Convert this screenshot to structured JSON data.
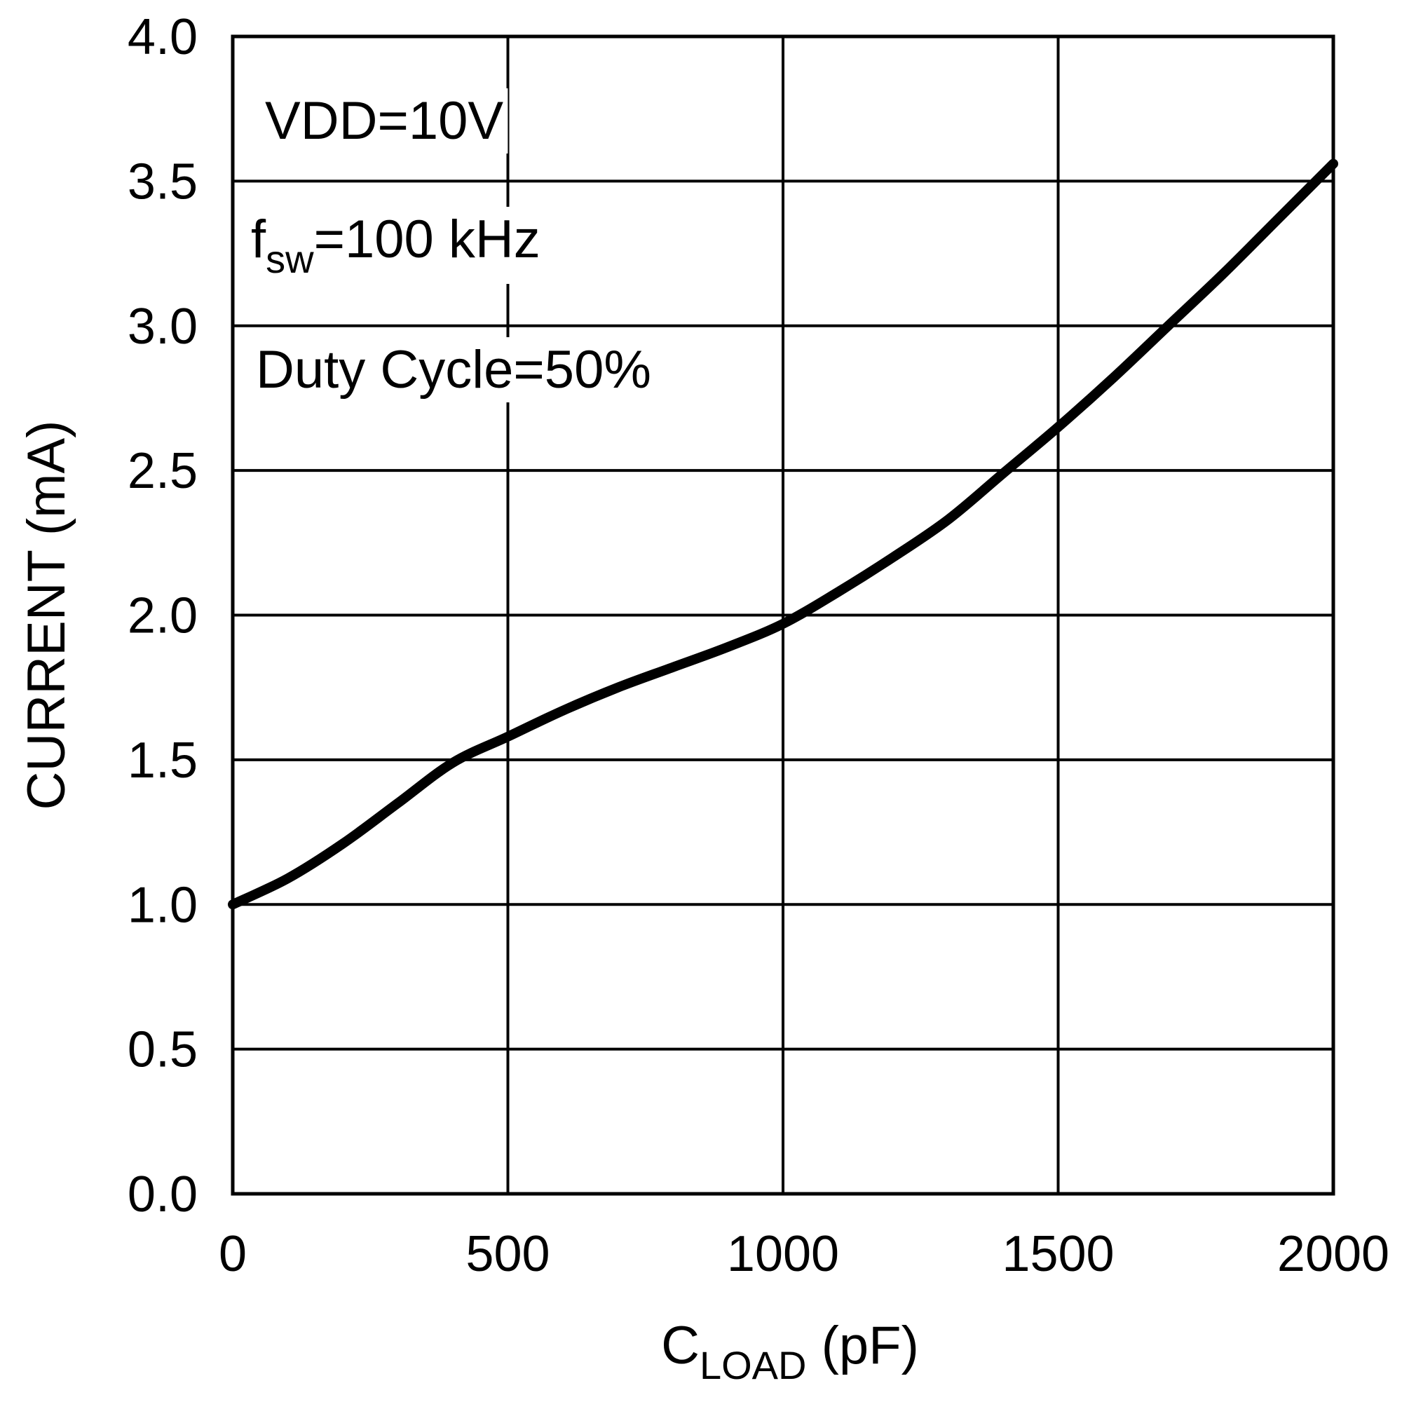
{
  "chart_data": {
    "type": "line",
    "title": "",
    "xlabel": {
      "main": "C",
      "sub": "LOAD",
      "unit": " (pF)"
    },
    "ylabel": "CURRENT (mA)",
    "xlim": [
      0,
      2000
    ],
    "ylim": [
      0,
      4.0
    ],
    "x_ticks": [
      0,
      500,
      1000,
      1500,
      2000
    ],
    "y_ticks": [
      0.0,
      0.5,
      1.0,
      1.5,
      2.0,
      2.5,
      3.0,
      3.5,
      4.0
    ],
    "x_tick_labels": [
      "0",
      "500",
      "1000",
      "1500",
      "2000"
    ],
    "y_tick_labels": [
      "0.0",
      "0.5",
      "1.0",
      "1.5",
      "2.0",
      "2.5",
      "3.0",
      "3.5",
      "4.0"
    ],
    "grid": true,
    "annotations": [
      {
        "main": "VDD=10V"
      },
      {
        "main": "f",
        "sub": "sw",
        "rest": "=100 kHz"
      },
      {
        "main": "Duty Cycle=50%"
      }
    ],
    "series": [
      {
        "name": "Current",
        "x": [
          0,
          100,
          200,
          300,
          400,
          500,
          600,
          700,
          800,
          900,
          1000,
          1100,
          1200,
          1300,
          1400,
          1500,
          1600,
          1700,
          1800,
          1900,
          2000
        ],
        "y": [
          1.0,
          1.09,
          1.21,
          1.35,
          1.49,
          1.58,
          1.67,
          1.75,
          1.82,
          1.89,
          1.97,
          2.08,
          2.2,
          2.33,
          2.49,
          2.65,
          2.82,
          3.0,
          3.18,
          3.37,
          3.56
        ]
      }
    ]
  },
  "colors": {
    "line": "#000000",
    "grid": "#000000",
    "background": "#ffffff"
  }
}
